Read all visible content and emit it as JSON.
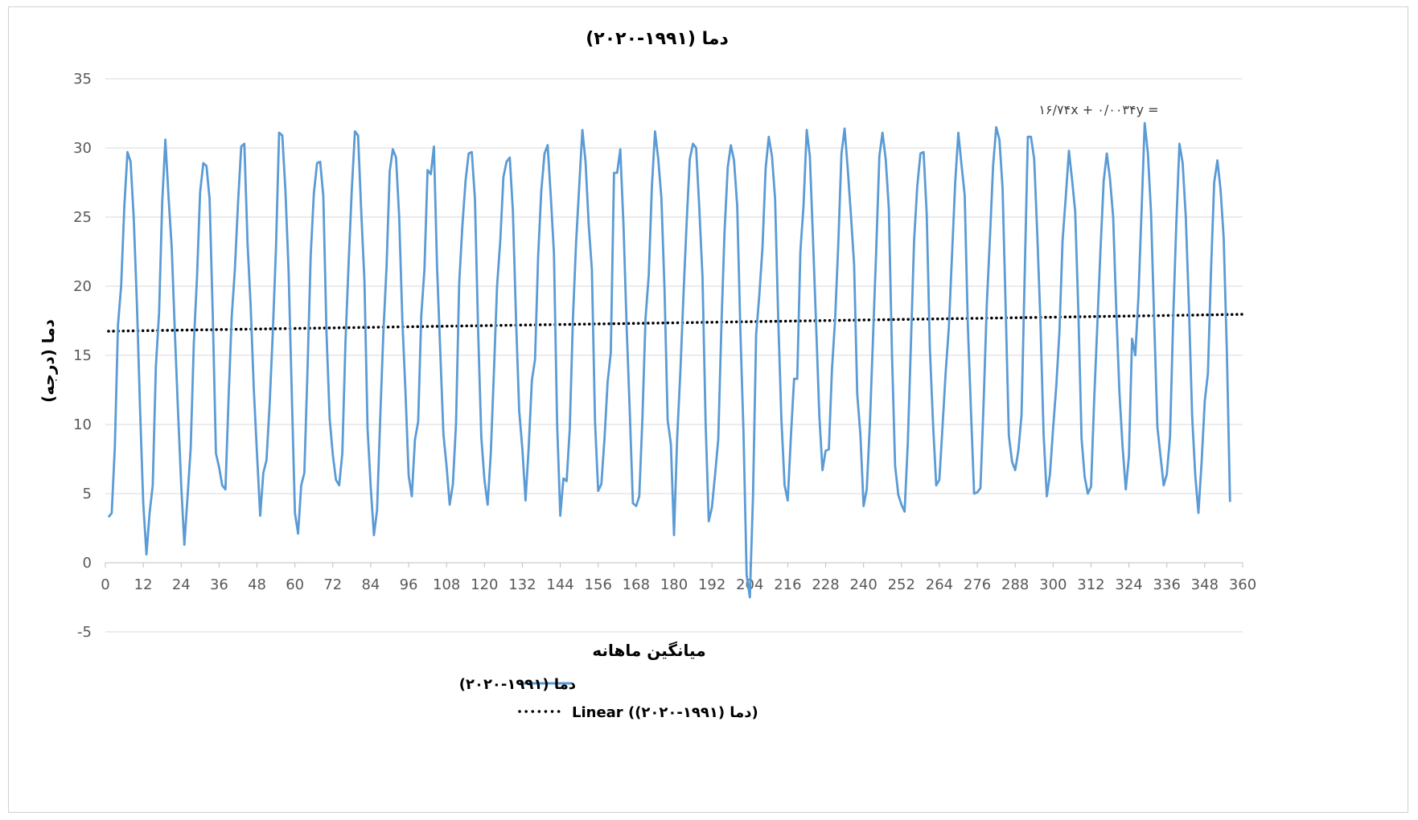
{
  "chart_data": {
    "type": "line",
    "title": "دما (۱۹۹۱-۲۰۲۰)",
    "xlabel": "میانگین ماهانه",
    "ylabel": "دما (درجه)",
    "xlim": [
      0,
      360
    ],
    "ylim": [
      -5,
      35
    ],
    "x_ticks": [
      0,
      12,
      24,
      36,
      48,
      60,
      72,
      84,
      96,
      108,
      120,
      132,
      144,
      156,
      168,
      180,
      192,
      204,
      216,
      228,
      240,
      252,
      264,
      276,
      288,
      300,
      312,
      324,
      336,
      348,
      360
    ],
    "y_ticks": [
      -5,
      0,
      5,
      10,
      15,
      20,
      25,
      30,
      35
    ],
    "grid": "horizontal",
    "legend_position": "bottom",
    "trendline_equation": "۱۶/۷۴x + ۰/۰۰۳۴y =",
    "series": [
      {
        "name": "دما (۱۹۹۱-۲۰۲۰)",
        "style": "solid",
        "color": "#5b9bd5",
        "values": [
          3.3,
          3.6,
          8.4,
          17.2,
          20.0,
          25.8,
          29.7,
          29.0,
          24.9,
          18.6,
          11.0,
          4.3,
          0.6,
          3.6,
          5.6,
          14.2,
          18.1,
          26.1,
          30.6,
          26.4,
          22.8,
          16.7,
          11.0,
          5.6,
          1.3,
          4.7,
          8.3,
          15.9,
          20.6,
          26.8,
          28.9,
          28.7,
          26.3,
          18.0,
          7.9,
          6.9,
          5.6,
          5.3,
          11.9,
          17.8,
          21.2,
          26.1,
          30.1,
          30.3,
          23.1,
          18.5,
          12.5,
          7.9,
          3.4,
          6.5,
          7.4,
          11.4,
          16.7,
          22.7,
          31.1,
          30.9,
          26.9,
          21.1,
          12.4,
          3.6,
          2.1,
          5.6,
          6.5,
          14.1,
          22.2,
          26.7,
          28.9,
          29.0,
          26.5,
          16.7,
          10.4,
          7.8,
          6.0,
          5.6,
          7.9,
          15.9,
          21.6,
          27.0,
          31.2,
          30.9,
          25.3,
          20.4,
          9.7,
          5.5,
          2.0,
          3.8,
          10.4,
          16.6,
          21.4,
          28.3,
          29.9,
          29.3,
          25.0,
          17.6,
          12.4,
          6.3,
          4.8,
          8.9,
          10.2,
          17.9,
          21.2,
          28.4,
          28.1,
          30.1,
          21.4,
          15.4,
          9.3,
          7.0,
          4.2,
          5.7,
          10.1,
          20.2,
          24.3,
          27.6,
          29.6,
          29.7,
          26.3,
          16.7,
          9.1,
          6.0,
          4.2,
          7.9,
          13.8,
          20.0,
          23.3,
          27.9,
          29.0,
          29.3,
          25.4,
          17.6,
          11.0,
          8.2,
          4.5,
          8.3,
          13.2,
          14.7,
          22.2,
          26.9,
          29.6,
          30.2,
          26.5,
          22.4,
          10.0,
          3.4,
          6.1,
          5.9,
          9.7,
          17.6,
          23.1,
          27.3,
          31.3,
          29.0,
          24.5,
          21.2,
          10.2,
          5.2,
          5.7,
          9.0,
          13.1,
          15.2,
          28.2,
          28.2,
          29.9,
          24.4,
          17.1,
          10.9,
          4.3,
          4.1,
          4.8,
          10.4,
          17.7,
          20.8,
          27.2,
          31.2,
          29.2,
          26.4,
          19.8,
          10.3,
          8.6,
          2.0,
          9.0,
          13.8,
          19.4,
          24.6,
          29.2,
          30.3,
          30.0,
          25.7,
          20.7,
          10.1,
          3.0,
          4.0,
          6.4,
          8.9,
          17.1,
          23.9,
          28.6,
          30.2,
          29.1,
          25.8,
          16.8,
          9.4,
          -0.9,
          -2.5,
          4.8,
          16.5,
          19.3,
          22.8,
          28.5,
          30.8,
          29.4,
          26.3,
          17.6,
          10.4,
          5.6,
          4.5,
          9.1,
          13.3,
          13.3,
          22.5,
          25.8,
          31.3,
          29.4,
          23.4,
          17.0,
          10.6,
          6.7,
          8.1,
          8.2,
          14.0,
          17.6,
          23.0,
          29.6,
          31.4,
          28.5,
          25.1,
          21.6,
          12.2,
          9.3,
          4.1,
          5.3,
          10.0,
          16.4,
          22.6,
          29.4,
          31.1,
          29.2,
          25.6,
          15.1,
          7.0,
          4.9,
          4.2,
          3.7,
          8.7,
          15.9,
          23.3,
          27.2,
          29.6,
          29.7,
          25.2,
          15.5,
          10.0,
          5.6,
          6.0,
          9.9,
          13.8,
          17.0,
          22.2,
          27.5,
          31.1,
          28.8,
          26.6,
          17.2,
          11.0,
          5.0,
          5.1,
          5.4,
          11.5,
          18.7,
          23.5,
          28.7,
          31.5,
          30.6,
          27.1,
          18.3,
          9.2,
          7.3,
          6.7,
          8.1,
          10.7,
          20.8,
          30.8,
          30.8,
          29.2,
          23.7,
          17.4,
          9.3,
          4.8,
          6.4,
          9.7,
          12.8,
          16.7,
          23.3,
          26.4,
          29.8,
          27.7,
          25.4,
          18.0,
          9.0,
          6.2,
          5.0,
          5.5,
          11.8,
          17.2,
          22.7,
          27.6,
          29.6,
          27.8,
          25.0,
          18.2,
          12.3,
          8.4,
          5.3,
          7.7,
          16.2,
          15.0,
          19.2,
          25.4,
          31.8,
          29.6,
          25.3,
          17.5,
          9.8,
          7.7,
          5.6,
          6.4,
          9.1,
          17.6,
          24.5,
          30.3,
          28.9,
          25.0,
          18.5,
          10.6,
          6.3,
          3.6,
          7.2,
          11.7,
          13.7,
          21.2,
          27.5,
          29.1,
          27.0,
          23.5,
          15.2,
          4.4
        ]
      },
      {
        "name": "Linear (دما (۱۹۹۱-۲۰۲۰))",
        "style": "dotted",
        "color": "#000000",
        "slope": 0.0034,
        "intercept": 16.74
      }
    ]
  }
}
